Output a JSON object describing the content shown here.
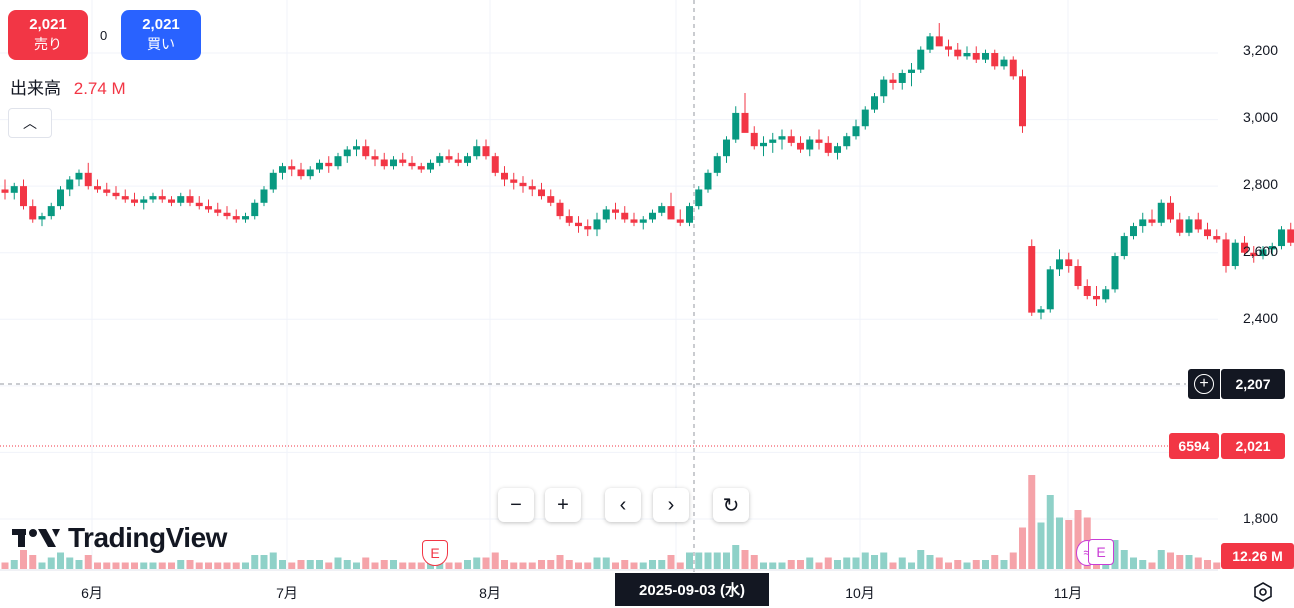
{
  "trade": {
    "sell_price": "2,021",
    "sell_label": "売り",
    "spread": "0",
    "buy_price": "2,021",
    "buy_label": "買い"
  },
  "volume_legend": {
    "label": "出来高",
    "value": "2.74 M"
  },
  "y_axis": {
    "ticks": [
      "3,200",
      "3,000",
      "2,800",
      "2,600",
      "2,400",
      "1,800"
    ]
  },
  "x_axis": {
    "ticks": [
      "6月",
      "7月",
      "8月",
      "9月",
      "10月",
      "11月"
    ],
    "crosshair_date": "2025-09-03 (水)"
  },
  "price_tags": {
    "crosshair": "2,207",
    "last_price": "2,021",
    "countdown": "6594",
    "volume": "12.26 M"
  },
  "events": {
    "earnings_a": "E",
    "earnings_b": "E",
    "split": "≈"
  },
  "brand": "TradingView",
  "controls": {
    "zoom_out": "−",
    "zoom_in": "+",
    "back": "‹",
    "forward": "›",
    "reset": "↻"
  },
  "colors": {
    "up": "#089981",
    "down": "#f23645",
    "vol_up": "#8fd1c8",
    "vol_down": "#f5a3a9",
    "buy": "#2962ff"
  },
  "chart_data": {
    "type": "candlestick",
    "candles_ohlc": [
      [
        2790,
        2820,
        2760,
        2780
      ],
      [
        2780,
        2810,
        2760,
        2800
      ],
      [
        2800,
        2820,
        2730,
        2740
      ],
      [
        2740,
        2760,
        2690,
        2700
      ],
      [
        2700,
        2720,
        2680,
        2710
      ],
      [
        2710,
        2750,
        2700,
        2740
      ],
      [
        2740,
        2800,
        2730,
        2790
      ],
      [
        2790,
        2830,
        2770,
        2820
      ],
      [
        2820,
        2850,
        2800,
        2840
      ],
      [
        2840,
        2870,
        2790,
        2800
      ],
      [
        2800,
        2820,
        2780,
        2790
      ],
      [
        2790,
        2810,
        2770,
        2780
      ],
      [
        2780,
        2800,
        2760,
        2770
      ],
      [
        2770,
        2790,
        2750,
        2760
      ],
      [
        2760,
        2780,
        2740,
        2750
      ],
      [
        2750,
        2770,
        2730,
        2760
      ],
      [
        2760,
        2780,
        2750,
        2770
      ],
      [
        2770,
        2790,
        2750,
        2760
      ],
      [
        2760,
        2770,
        2740,
        2750
      ],
      [
        2750,
        2780,
        2740,
        2770
      ],
      [
        2770,
        2790,
        2740,
        2750
      ],
      [
        2750,
        2770,
        2730,
        2740
      ],
      [
        2740,
        2760,
        2720,
        2730
      ],
      [
        2730,
        2750,
        2710,
        2720
      ],
      [
        2720,
        2740,
        2700,
        2710
      ],
      [
        2710,
        2730,
        2690,
        2700
      ],
      [
        2700,
        2720,
        2690,
        2710
      ],
      [
        2710,
        2760,
        2700,
        2750
      ],
      [
        2750,
        2800,
        2740,
        2790
      ],
      [
        2790,
        2850,
        2780,
        2840
      ],
      [
        2840,
        2870,
        2820,
        2860
      ],
      [
        2860,
        2880,
        2830,
        2850
      ],
      [
        2850,
        2870,
        2820,
        2830
      ],
      [
        2830,
        2860,
        2820,
        2850
      ],
      [
        2850,
        2880,
        2840,
        2870
      ],
      [
        2870,
        2890,
        2840,
        2860
      ],
      [
        2860,
        2900,
        2850,
        2890
      ],
      [
        2890,
        2920,
        2870,
        2910
      ],
      [
        2910,
        2940,
        2890,
        2920
      ],
      [
        2920,
        2940,
        2880,
        2890
      ],
      [
        2890,
        2910,
        2860,
        2880
      ],
      [
        2880,
        2900,
        2850,
        2860
      ],
      [
        2860,
        2890,
        2850,
        2880
      ],
      [
        2880,
        2900,
        2860,
        2870
      ],
      [
        2870,
        2890,
        2850,
        2860
      ],
      [
        2860,
        2870,
        2840,
        2850
      ],
      [
        2850,
        2880,
        2840,
        2870
      ],
      [
        2870,
        2900,
        2860,
        2890
      ],
      [
        2890,
        2910,
        2870,
        2880
      ],
      [
        2880,
        2900,
        2860,
        2870
      ],
      [
        2870,
        2900,
        2860,
        2890
      ],
      [
        2890,
        2940,
        2880,
        2920
      ],
      [
        2920,
        2940,
        2880,
        2890
      ],
      [
        2890,
        2900,
        2830,
        2840
      ],
      [
        2840,
        2860,
        2800,
        2820
      ],
      [
        2820,
        2840,
        2790,
        2810
      ],
      [
        2810,
        2830,
        2780,
        2800
      ],
      [
        2800,
        2820,
        2770,
        2790
      ],
      [
        2790,
        2810,
        2760,
        2770
      ],
      [
        2770,
        2790,
        2740,
        2750
      ],
      [
        2750,
        2760,
        2700,
        2710
      ],
      [
        2710,
        2730,
        2680,
        2690
      ],
      [
        2690,
        2710,
        2660,
        2680
      ],
      [
        2680,
        2700,
        2650,
        2670
      ],
      [
        2670,
        2720,
        2650,
        2700
      ],
      [
        2700,
        2740,
        2690,
        2730
      ],
      [
        2730,
        2750,
        2700,
        2720
      ],
      [
        2720,
        2740,
        2690,
        2700
      ],
      [
        2700,
        2720,
        2680,
        2690
      ],
      [
        2690,
        2710,
        2670,
        2700
      ],
      [
        2700,
        2730,
        2690,
        2720
      ],
      [
        2720,
        2750,
        2710,
        2740
      ],
      [
        2740,
        2780,
        2720,
        2700
      ],
      [
        2700,
        2730,
        2680,
        2690
      ],
      [
        2690,
        2750,
        2680,
        2740
      ],
      [
        2740,
        2800,
        2730,
        2790
      ],
      [
        2790,
        2850,
        2780,
        2840
      ],
      [
        2840,
        2900,
        2830,
        2890
      ],
      [
        2890,
        2950,
        2870,
        2940
      ],
      [
        2940,
        3040,
        2930,
        3020
      ],
      [
        3020,
        3080,
        3000,
        2960
      ],
      [
        2960,
        2980,
        2910,
        2920
      ],
      [
        2920,
        2950,
        2890,
        2930
      ],
      [
        2930,
        2960,
        2900,
        2940
      ],
      [
        2940,
        2970,
        2910,
        2950
      ],
      [
        2950,
        2970,
        2920,
        2930
      ],
      [
        2930,
        2950,
        2900,
        2910
      ],
      [
        2910,
        2950,
        2890,
        2940
      ],
      [
        2940,
        2970,
        2910,
        2930
      ],
      [
        2930,
        2950,
        2890,
        2900
      ],
      [
        2900,
        2930,
        2880,
        2920
      ],
      [
        2920,
        2960,
        2910,
        2950
      ],
      [
        2950,
        3000,
        2940,
        2980
      ],
      [
        2980,
        3040,
        2970,
        3030
      ],
      [
        3030,
        3080,
        3020,
        3070
      ],
      [
        3070,
        3130,
        3050,
        3120
      ],
      [
        3120,
        3140,
        3090,
        3110
      ],
      [
        3110,
        3150,
        3090,
        3140
      ],
      [
        3140,
        3170,
        3100,
        3150
      ],
      [
        3150,
        3220,
        3140,
        3210
      ],
      [
        3210,
        3260,
        3200,
        3250
      ],
      [
        3250,
        3290,
        3230,
        3220
      ],
      [
        3220,
        3240,
        3190,
        3210
      ],
      [
        3210,
        3230,
        3180,
        3190
      ],
      [
        3190,
        3220,
        3180,
        3200
      ],
      [
        3200,
        3220,
        3170,
        3180
      ],
      [
        3180,
        3210,
        3170,
        3200
      ],
      [
        3200,
        3210,
        3150,
        3160
      ],
      [
        3160,
        3190,
        3150,
        3180
      ],
      [
        3180,
        3190,
        3120,
        3130
      ],
      [
        3130,
        3150,
        2960,
        2980
      ],
      [
        2620,
        2640,
        2410,
        2420
      ],
      [
        2420,
        2440,
        2400,
        2430
      ],
      [
        2430,
        2560,
        2420,
        2550
      ],
      [
        2550,
        2610,
        2530,
        2580
      ],
      [
        2580,
        2600,
        2540,
        2560
      ],
      [
        2560,
        2580,
        2490,
        2500
      ],
      [
        2500,
        2520,
        2460,
        2470
      ],
      [
        2470,
        2500,
        2440,
        2460
      ],
      [
        2460,
        2500,
        2450,
        2490
      ],
      [
        2490,
        2600,
        2480,
        2590
      ],
      [
        2590,
        2660,
        2580,
        2650
      ],
      [
        2650,
        2690,
        2640,
        2680
      ],
      [
        2680,
        2720,
        2660,
        2700
      ],
      [
        2700,
        2730,
        2680,
        2690
      ],
      [
        2690,
        2760,
        2680,
        2750
      ],
      [
        2750,
        2770,
        2690,
        2700
      ],
      [
        2700,
        2720,
        2650,
        2660
      ],
      [
        2660,
        2710,
        2650,
        2700
      ],
      [
        2700,
        2720,
        2660,
        2670
      ],
      [
        2670,
        2690,
        2640,
        2650
      ],
      [
        2650,
        2670,
        2630,
        2640
      ],
      [
        2640,
        2660,
        2540,
        2560
      ],
      [
        2560,
        2640,
        2550,
        2630
      ],
      [
        2630,
        2650,
        2590,
        2600
      ],
      [
        2600,
        2620,
        2570,
        2590
      ],
      [
        2590,
        2620,
        2580,
        2610
      ],
      [
        2610,
        2630,
        2590,
        2620
      ],
      [
        2620,
        2680,
        2610,
        2670
      ],
      [
        2670,
        2690,
        2620,
        2630
      ],
      [
        2630,
        2660,
        2610,
        2650
      ],
      [
        2650,
        2690,
        2640,
        2680
      ],
      [
        2680,
        2700,
        2660,
        2690
      ],
      [
        2690,
        2720,
        2680,
        2700
      ],
      [
        2700,
        2730,
        2660,
        2670
      ],
      [
        2670,
        2680,
        2560,
        2570
      ],
      [
        2570,
        2590,
        2530,
        2540
      ],
      [
        2540,
        2580,
        2510,
        2560
      ],
      [
        2560,
        2580,
        2480,
        2490
      ],
      [
        2490,
        2530,
        2470,
        2520
      ],
      [
        2520,
        2560,
        2510,
        2550
      ],
      [
        2550,
        2600,
        2540,
        2590
      ],
      [
        2590,
        2630,
        2570,
        2620
      ],
      [
        2620,
        2640,
        2570,
        2580
      ],
      [
        2580,
        2600,
        2550,
        2560
      ],
      [
        2560,
        2580,
        2270,
        2280
      ],
      [
        2280,
        2470,
        2270,
        2460
      ],
      [
        2460,
        2590,
        2450,
        2580
      ],
      [
        2280,
        2320,
        2240,
        2300
      ],
      [
        1950,
        2000,
        1940,
        1990
      ],
      [
        1990,
        2050,
        1960,
        1970
      ],
      [
        1970,
        2060,
        1940,
        2040
      ],
      [
        2040,
        2100,
        1850,
        1860
      ],
      [
        1860,
        1900,
        1790,
        1810
      ],
      [
        1810,
        1900,
        1800,
        1890
      ],
      [
        1890,
        2070,
        1880,
        2060
      ],
      [
        2060,
        2080,
        2030,
        2070
      ],
      [
        2070,
        2090,
        2040,
        2050
      ],
      [
        2050,
        2070,
        2030,
        2040
      ],
      [
        2040,
        2060,
        2010,
        2021
      ]
    ],
    "volume_note": "volume bars in lower pane, latest 12.26 M",
    "ylim": [
      1800,
      3300
    ],
    "grid": true
  }
}
